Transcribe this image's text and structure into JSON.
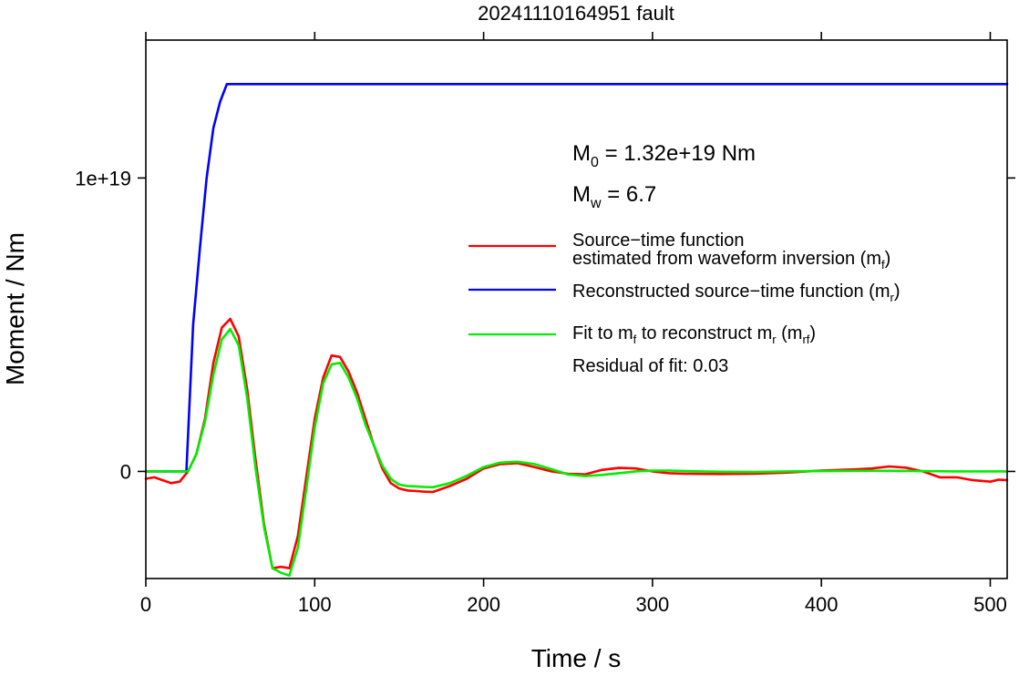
{
  "chart_data": {
    "type": "line",
    "title": "20241110164951 fault",
    "xlabel": "Time / s",
    "ylabel": "Moment / Nm",
    "xlim": [
      0,
      510
    ],
    "ylim": [
      -3.65e+18,
      1.47e+19
    ],
    "x_ticks": [
      0,
      100,
      200,
      300,
      400,
      500
    ],
    "x_tick_labels": [
      "0",
      "100",
      "200",
      "300",
      "400",
      "500"
    ],
    "y_ticks": [
      0,
      1e+19
    ],
    "y_tick_labels": [
      "0",
      "1e+19"
    ],
    "grid": false,
    "legend_position": "right",
    "annotations": {
      "m0_prefix": "M",
      "m0_sub": "0",
      "m0_value": " = 1.32e+19 Nm",
      "mw_prefix": "M",
      "mw_sub": "w",
      "mw_value": " = 6.7",
      "residual": "Residual of fit: 0.03"
    },
    "legend": [
      {
        "lines": [
          "Source−time function",
          "estimated from waveform inversion (m",
          "f",
          ")"
        ],
        "color": "#ff0000"
      },
      {
        "lines": [
          "Reconstructed source−time function (m",
          "r",
          ")"
        ],
        "color": "#0000ff"
      },
      {
        "lines": [
          "Fit to m",
          "f",
          " to reconstruct m",
          "r",
          " (m",
          "rf",
          ")"
        ],
        "color": "#00ee00"
      }
    ],
    "series": [
      {
        "color": "#ff0000",
        "x": [
          0,
          5,
          10,
          15,
          20,
          25,
          30,
          35,
          40,
          45,
          50,
          55,
          60,
          65,
          70,
          75,
          80,
          85,
          90,
          95,
          100,
          105,
          110,
          115,
          120,
          125,
          130,
          135,
          140,
          145,
          150,
          155,
          160,
          165,
          170,
          180,
          190,
          200,
          210,
          220,
          230,
          240,
          250,
          260,
          270,
          280,
          290,
          300,
          310,
          320,
          340,
          360,
          380,
          400,
          420,
          430,
          440,
          450,
          460,
          470,
          480,
          490,
          500,
          505,
          510
        ],
        "y": [
          -2.5e+17,
          -2e+17,
          -3e+17,
          -4e+17,
          -3.5e+17,
          0,
          6e+17,
          1.8e+18,
          3.7e+18,
          4.9e+18,
          5.2e+18,
          4.6e+18,
          2.8e+18,
          4e+17,
          -1.8e+18,
          -3.3e+18,
          -3.25e+18,
          -3.3e+18,
          -2.2e+18,
          -2e+17,
          1.8e+18,
          3.2e+18,
          3.95e+18,
          3.9e+18,
          3.4e+18,
          2.7e+18,
          1.8e+18,
          9e+17,
          1e+17,
          -4e+17,
          -5.8e+17,
          -6.5e+17,
          -6.7e+17,
          -6.9e+17,
          -7e+17,
          -5e+17,
          -2.5e+17,
          1e+17,
          2.5e+17,
          2.8e+17,
          1.5e+17,
          0,
          -8e+16,
          -1e+17,
          5e+16,
          1.2e+17,
          1e+17,
          0,
          -6e+16,
          -8e+16,
          -9e+16,
          -8e+16,
          -4e+16,
          3e+16,
          7e+16,
          1e+17,
          1.7e+17,
          1.3e+17,
          0,
          -2e+17,
          -2e+17,
          -3e+17,
          -3.5e+17,
          -2.8e+17,
          -3e+17
        ]
      },
      {
        "color": "#0000ff",
        "x": [
          0,
          24,
          28,
          32,
          36,
          40,
          44,
          48,
          50,
          100,
          200,
          300,
          400,
          510
        ],
        "y": [
          0,
          0,
          5e+18,
          7.6e+18,
          1e+19,
          1.17e+19,
          1.26e+19,
          1.32e+19,
          1.32e+19,
          1.32e+19,
          1.32e+19,
          1.32e+19,
          1.32e+19,
          1.32e+19
        ]
      },
      {
        "color": "#00ee00",
        "x": [
          0,
          5,
          10,
          15,
          20,
          25,
          30,
          35,
          40,
          45,
          50,
          55,
          60,
          65,
          70,
          75,
          80,
          85,
          90,
          95,
          100,
          105,
          110,
          115,
          120,
          125,
          130,
          135,
          140,
          145,
          150,
          155,
          160,
          165,
          170,
          180,
          190,
          200,
          210,
          220,
          230,
          240,
          250,
          260,
          270,
          280,
          290,
          300,
          310,
          320,
          340,
          360,
          380,
          400,
          420,
          440,
          460,
          480,
          500,
          510
        ],
        "y": [
          0,
          0,
          0,
          0,
          0,
          0,
          6e+17,
          1.7e+18,
          3.3e+18,
          4.5e+18,
          4.85e+18,
          4.3e+18,
          2.5e+18,
          1e+17,
          -1.9e+18,
          -3.3e+18,
          -3.45e+18,
          -3.55e+18,
          -2.6e+18,
          -6e+17,
          1.5e+18,
          3e+18,
          3.65e+18,
          3.7e+18,
          3.2e+18,
          2.5e+18,
          1.6e+18,
          9e+17,
          2e+17,
          -2.5e+17,
          -4.5e+17,
          -5e+17,
          -5.1e+17,
          -5.3e+17,
          -5.4e+17,
          -4e+17,
          -1.5e+17,
          1.5e+17,
          3e+17,
          3.3e+17,
          2.5e+17,
          8e+16,
          -1e+17,
          -1.6e+17,
          -1.2e+17,
          -6e+16,
          0,
          3e+16,
          3e+16,
          1e+16,
          -1e+16,
          -2e+16,
          0,
          1e+16,
          2e+16,
          2e+16,
          1e+16,
          0,
          0,
          0
        ]
      }
    ]
  }
}
